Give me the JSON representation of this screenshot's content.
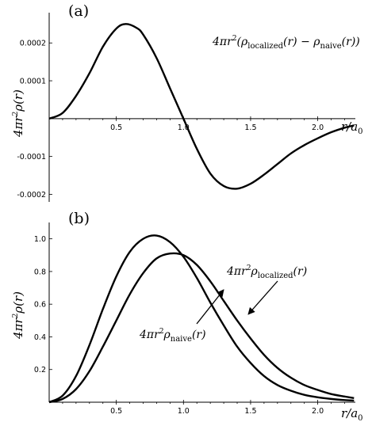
{
  "panels": {
    "a": {
      "letter": "(a)",
      "annotation": "4πr²(ρlocalized(r) − ρnaive(r))"
    },
    "b": {
      "letter": "(b)",
      "annotation_localized": "4πr²ρlocalized(r)",
      "annotation_naive": "4πr²ρnaive(r)"
    }
  },
  "chart_data": [
    {
      "type": "line",
      "id": "a",
      "title": "",
      "xlabel": "r/a0",
      "ylabel": "4πr²ρ(r)",
      "xlim": [
        0,
        2.28
      ],
      "ylim": [
        -0.00022,
        0.00028
      ],
      "x_ticks": [
        0.5,
        1.0,
        1.5,
        2.0
      ],
      "x_tick_labels": [
        "0.5",
        "1.0",
        "1.5",
        "2.0"
      ],
      "y_ticks": [
        -0.0002,
        -0.0001,
        0.0001,
        0.0002
      ],
      "y_tick_labels": [
        "-0.0002",
        "-0.0001",
        "0.0001",
        "0.0002"
      ],
      "grid": false,
      "legend": "none",
      "series": [
        {
          "name": "4πr²(ρlocalized(r) − ρnaive(r))",
          "x": [
            0,
            0.1,
            0.2,
            0.3,
            0.4,
            0.5,
            0.57,
            0.65,
            0.7,
            0.8,
            0.9,
            1.0,
            1.1,
            1.2,
            1.3,
            1.4,
            1.5,
            1.6,
            1.7,
            1.8,
            1.9,
            2.0,
            2.1,
            2.2,
            2.27
          ],
          "values": [
            0,
            1.5e-05,
            6e-05,
            0.00012,
            0.00019,
            0.000238,
            0.00025,
            0.00024,
            0.000222,
            0.00016,
            8e-05,
            0.0,
            -8e-05,
            -0.000145,
            -0.000178,
            -0.000185,
            -0.000172,
            -0.000148,
            -0.00012,
            -9.2e-05,
            -7e-05,
            -5.2e-05,
            -3.6e-05,
            -2.4e-05,
            -1.8e-05
          ]
        }
      ]
    },
    {
      "type": "line",
      "id": "b",
      "title": "",
      "xlabel": "r/a0",
      "ylabel": "4πr²ρ(r)",
      "xlim": [
        0,
        2.28
      ],
      "ylim": [
        0,
        1.1
      ],
      "x_ticks": [
        0.5,
        1.0,
        1.5,
        2.0
      ],
      "x_tick_labels": [
        "0.5",
        "1.0",
        "1.5",
        "2.0"
      ],
      "y_ticks": [
        0.2,
        0.4,
        0.6,
        0.8,
        1.0
      ],
      "y_tick_labels": [
        "0.2",
        "0.4",
        "0.6",
        "0.8",
        "1.0"
      ],
      "grid": false,
      "legend": "none",
      "series": [
        {
          "name": "4πr²ρlocalized(r)",
          "x": [
            0,
            0.1,
            0.2,
            0.3,
            0.4,
            0.5,
            0.6,
            0.7,
            0.8,
            0.9,
            1.0,
            1.1,
            1.2,
            1.3,
            1.4,
            1.5,
            1.6,
            1.7,
            1.8,
            1.9,
            2.0,
            2.1,
            2.2,
            2.27
          ],
          "values": [
            0,
            0.04,
            0.16,
            0.35,
            0.57,
            0.77,
            0.92,
            1.0,
            1.02,
            0.98,
            0.89,
            0.76,
            0.61,
            0.47,
            0.34,
            0.24,
            0.16,
            0.105,
            0.07,
            0.045,
            0.03,
            0.02,
            0.013,
            0.01
          ]
        },
        {
          "name": "4πr²ρnaive(r)",
          "x": [
            0,
            0.1,
            0.2,
            0.3,
            0.4,
            0.5,
            0.6,
            0.7,
            0.8,
            0.9,
            1.0,
            1.1,
            1.2,
            1.3,
            1.4,
            1.5,
            1.6,
            1.7,
            1.8,
            1.9,
            2.0,
            2.1,
            2.2,
            2.27
          ],
          "values": [
            0,
            0.02,
            0.08,
            0.19,
            0.34,
            0.5,
            0.66,
            0.79,
            0.88,
            0.91,
            0.9,
            0.84,
            0.74,
            0.62,
            0.5,
            0.39,
            0.29,
            0.21,
            0.15,
            0.105,
            0.075,
            0.05,
            0.035,
            0.025
          ]
        }
      ]
    }
  ]
}
